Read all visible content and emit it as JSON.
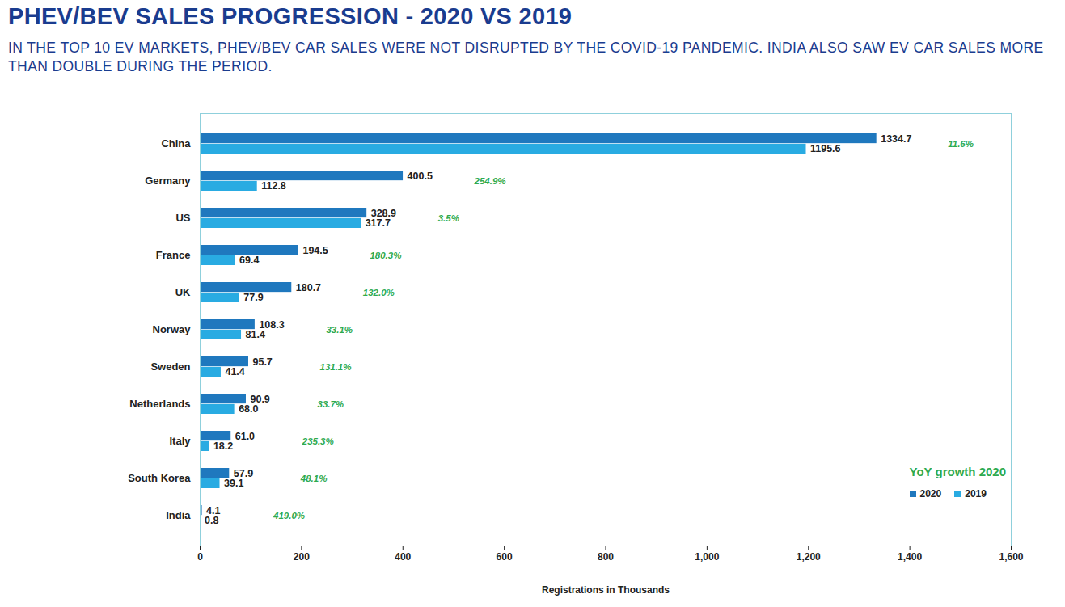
{
  "chart_data": {
    "type": "bar",
    "orientation": "horizontal",
    "title": "PHEV/BEV SALES PROGRESSION - 2020 VS 2019",
    "subtitle": "IN THE TOP 10 EV MARKETS, PHEV/BEV CAR SALES WERE NOT DISRUPTED BY THE COVID-19 PANDEMIC. INDIA ALSO SAW EV CAR SALES MORE THAN DOUBLE DURING THE PERIOD.",
    "x_label": "Registrations in Thousands",
    "categories": [
      "China",
      "Germany",
      "US",
      "France",
      "UK",
      "Norway",
      "Sweden",
      "Netherlands",
      "Italy",
      "South Korea",
      "India"
    ],
    "series": [
      {
        "name": "2020",
        "color": "#1f78be",
        "values": [
          1334.7,
          400.5,
          328.9,
          194.5,
          180.7,
          108.3,
          95.7,
          90.9,
          61.0,
          57.9,
          4.1
        ],
        "value_labels": [
          "1334.7",
          "400.5",
          "328.9",
          "194.5",
          "180.7",
          "108.3",
          "95.7",
          "90.9",
          "61.0",
          "57.9",
          "4.1"
        ]
      },
      {
        "name": "2019",
        "color": "#29abe2",
        "values": [
          1195.6,
          112.8,
          317.7,
          69.4,
          77.9,
          81.4,
          41.4,
          68.0,
          18.2,
          39.1,
          0.8
        ],
        "value_labels": [
          "1195.6",
          "112.8",
          "317.7",
          "69.4",
          "77.9",
          "81.4",
          "41.4",
          "68.0",
          "18.2",
          "39.1",
          "0.8"
        ]
      }
    ],
    "legend_title": "YoY growth 2020",
    "annotations": [
      "11.6%",
      "254.9%",
      "3.5%",
      "180.3%",
      "132.0%",
      "33.1%",
      "131.1%",
      "33.7%",
      "235.3%",
      "48.1%",
      "419.0%"
    ],
    "xlim": [
      0,
      1600
    ],
    "xticks": [
      0,
      200,
      400,
      600,
      800,
      1000,
      1200,
      1400,
      1600
    ],
    "grid": false,
    "data_labels": true,
    "legend": "lower right"
  }
}
